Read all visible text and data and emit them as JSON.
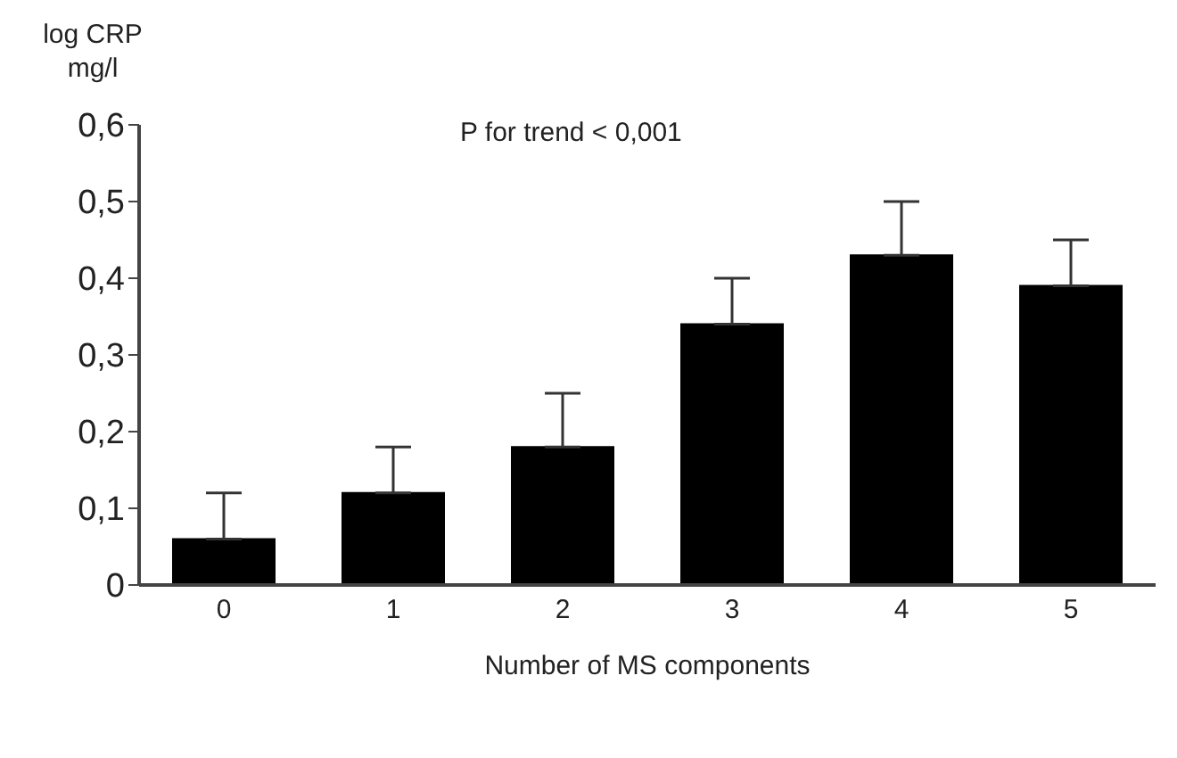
{
  "chart_data": {
    "type": "bar",
    "ylabel": "log CRP mg/l",
    "xlabel": "Number of MS components",
    "annotations": [
      "P for trend < 0,001"
    ],
    "categories": [
      "0",
      "1",
      "2",
      "3",
      "4",
      "5"
    ],
    "values": [
      0.06,
      0.12,
      0.18,
      0.34,
      0.43,
      0.39
    ],
    "errors": [
      [
        0.06,
        0.12
      ],
      [
        0.12,
        0.18
      ],
      [
        0.18,
        0.25
      ],
      [
        0.34,
        0.4
      ],
      [
        0.43,
        0.5
      ],
      [
        0.39,
        0.45
      ]
    ],
    "color": "#000000",
    "ylim": [
      0,
      0.6
    ],
    "yticks": [
      0,
      {
        "value": 0.1,
        "label": "0,1"
      },
      {
        "value": 0.2,
        "label": "0,2"
      },
      {
        "value": 0.3,
        "label": "0,3"
      },
      {
        "value": 0.4,
        "label": "0,4"
      },
      {
        "value": 0.5,
        "label": "0,5"
      },
      {
        "value": 0.6,
        "label": "0,6"
      }
    ],
    "grid": false,
    "legend": false
  }
}
